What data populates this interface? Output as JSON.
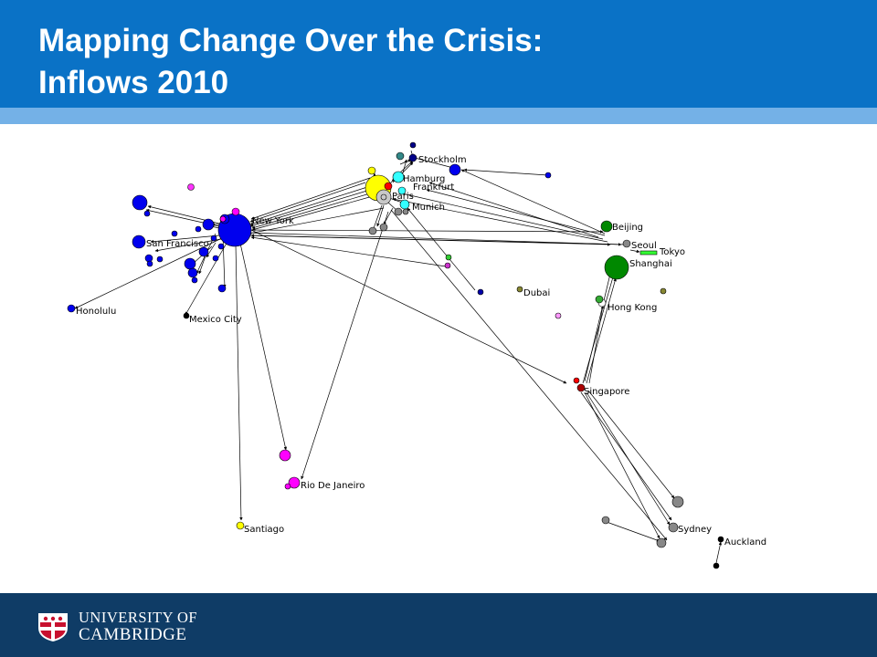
{
  "slide": {
    "title_line1": "Mapping Change Over the Crisis:",
    "title_line2": "Inflows 2010"
  },
  "footer": {
    "logo_icon": "university-crest-icon",
    "institution_line1": "UNIVERSITY OF",
    "institution_line2": "CAMBRIDGE"
  },
  "colors": {
    "header": "#0a72c6",
    "header_stripe": "#74b1e7",
    "footer": "#0f3c66"
  },
  "network": {
    "labels": [
      "New York",
      "San Francisco",
      "Honolulu",
      "Mexico City",
      "Stockholm",
      "Hamburg",
      "Frankfurt",
      "Paris",
      "Munich",
      "Beijing",
      "Seoul",
      "Tokyo",
      "Shanghai",
      "Dubai",
      "Hong Kong",
      "Singapore",
      "Rio De Janeiro",
      "Santiago",
      "Sydney",
      "Auckland"
    ]
  }
}
